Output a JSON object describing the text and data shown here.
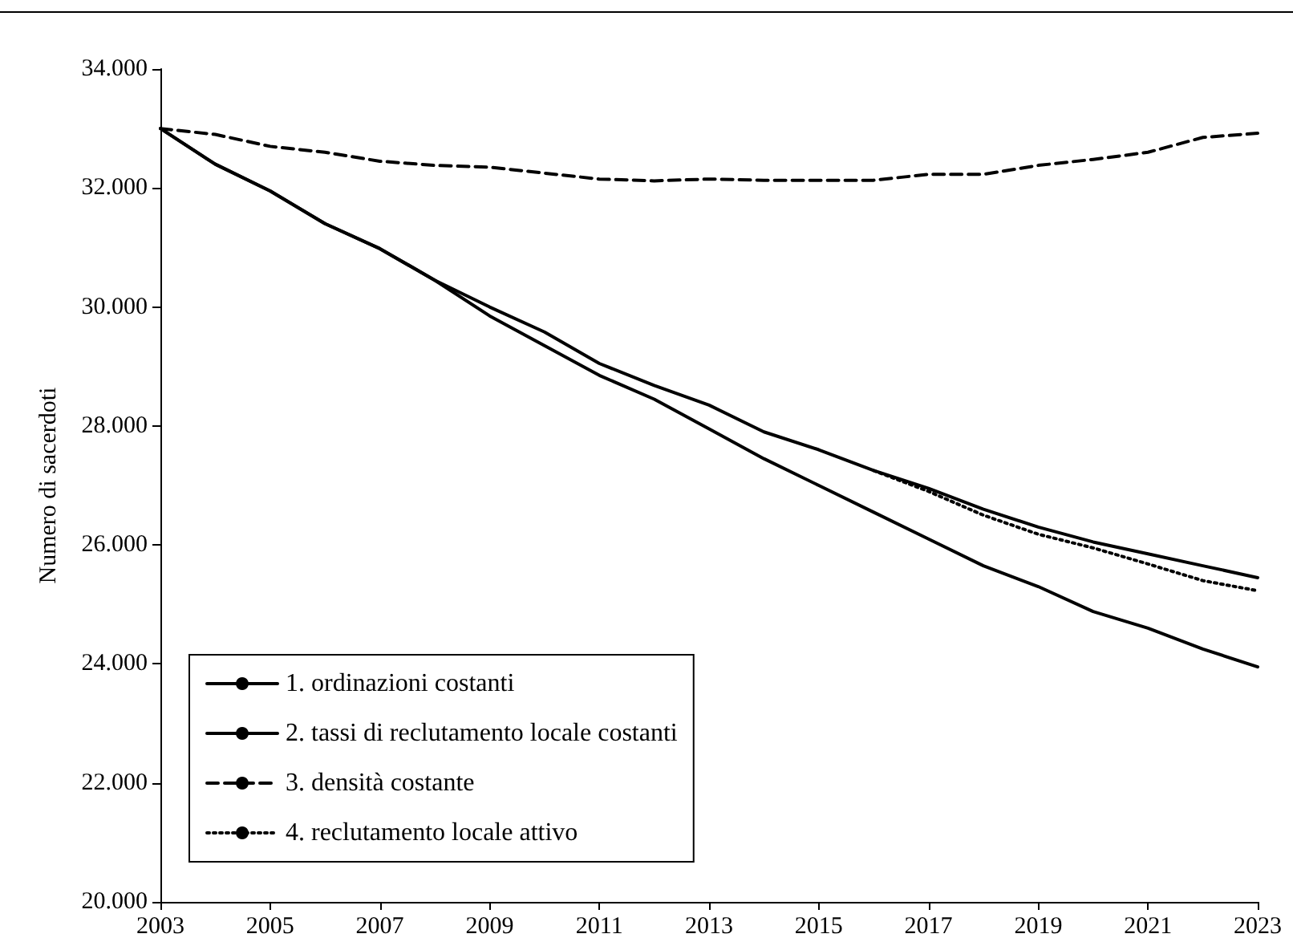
{
  "chart_data": {
    "type": "line",
    "ylabel": "Numero di sacerdoti",
    "categories": [
      "2003",
      null,
      "2005",
      null,
      "2007",
      null,
      "2009",
      null,
      "2011",
      null,
      "2013",
      null,
      "2015",
      null,
      "2017",
      null,
      "2019",
      null,
      "2021",
      null,
      "2023"
    ],
    "series": [
      {
        "name": "1. ordinazioni costanti",
        "color": "#000000",
        "line_style": "solid",
        "values": [
          33000,
          32400,
          31950,
          31400,
          30980,
          30450,
          30000,
          29580,
          29050,
          28680,
          28350,
          27900,
          27600,
          27250,
          26950,
          26600,
          26300,
          26050,
          25850,
          25650,
          25450
        ]
      },
      {
        "name": "2. tassi di reclutamento locale costanti",
        "color": "#000000",
        "line_style": "solid",
        "values": [
          33000,
          32400,
          31950,
          31400,
          30980,
          30450,
          29850,
          29350,
          28850,
          28450,
          27950,
          27450,
          27000,
          26550,
          26100,
          25650,
          25300,
          24880,
          24600,
          24250,
          23950
        ]
      },
      {
        "name": "3. densità costante",
        "color": "#000000",
        "line_style": "dashed",
        "values": [
          33000,
          32900,
          32700,
          32600,
          32450,
          32380,
          32350,
          32250,
          32150,
          32120,
          32150,
          32130,
          32130,
          32130,
          32230,
          32230,
          32380,
          32480,
          32600,
          32850,
          32920
        ]
      },
      {
        "name": "4. reclutamento locale attivo",
        "color": "#000000",
        "line_style": "dotted",
        "values": [
          null,
          null,
          null,
          null,
          null,
          null,
          null,
          null,
          null,
          null,
          null,
          null,
          null,
          27250,
          26900,
          26500,
          26180,
          25950,
          25680,
          25400,
          25230
        ]
      }
    ],
    "ylim": [
      20000,
      34000
    ],
    "yticks": [
      {
        "value": 20000,
        "label": "20.000"
      },
      {
        "value": 22000,
        "label": "22.000"
      },
      {
        "value": 24000,
        "label": "24.000"
      },
      {
        "value": 26000,
        "label": "26.000"
      },
      {
        "value": 28000,
        "label": "28.000"
      },
      {
        "value": 30000,
        "label": "30.000"
      },
      {
        "value": 32000,
        "label": "32.000"
      },
      {
        "value": 34000,
        "label": "34.000"
      }
    ],
    "grid": false,
    "legend": "bottom left",
    "marker": "none"
  }
}
